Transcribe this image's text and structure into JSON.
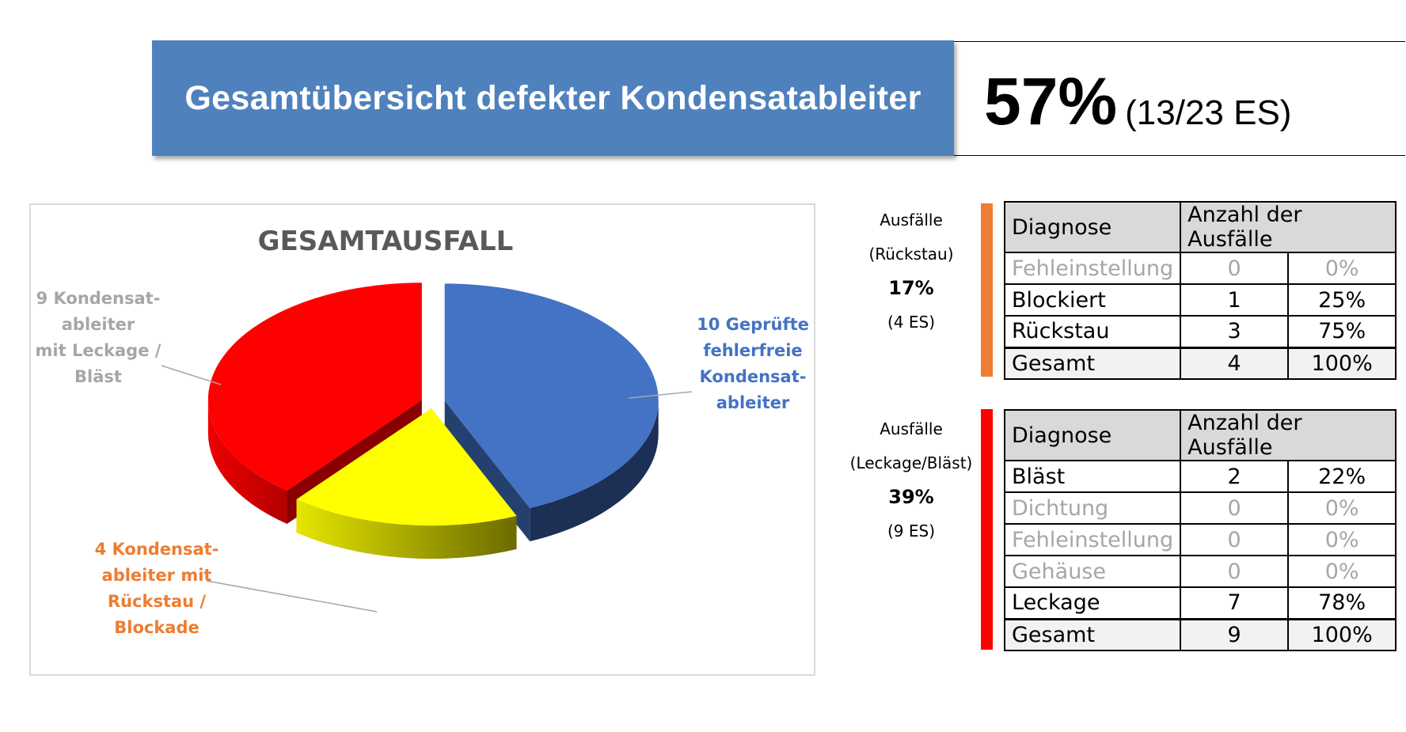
{
  "header": {
    "title": "Gesamtübersicht defekter Kondensatableiter",
    "kpi_percent": "57%",
    "kpi_detail": "(13/23 ES)",
    "bar_color": "#4f81bd"
  },
  "chart_data": {
    "type": "pie",
    "title": "GESAMTAUSFALL",
    "slices": [
      {
        "label": "10 Geprüfte fehlerfreie Kondensat-ableiter",
        "lines": [
          "10 Geprüfte",
          "fehlerfreie",
          "Kondensat-",
          "ableiter"
        ],
        "value": 10,
        "color": "#4472c4",
        "label_color": "#4472c4"
      },
      {
        "label": "4 Kondensat-ableiter mit Rückstau / Blockade",
        "lines": [
          "4 Kondensat-",
          "ableiter mit",
          "Rückstau /",
          "Blockade"
        ],
        "value": 4,
        "color": "#ffff00",
        "label_color": "#ed7d31"
      },
      {
        "label": "9 Kondensat-ableiter mit Leckage / Bläst",
        "lines": [
          "9 Kondensat-",
          "ableiter",
          "mit Leckage /",
          "Bläst"
        ],
        "value": 9,
        "color": "#ff0000",
        "label_color": "#a6a6a6"
      }
    ],
    "style": "3d-exploded"
  },
  "block1": {
    "label1": "Ausfälle",
    "label2": "(Rückstau)",
    "percent": "17%",
    "count": "(4 ES)",
    "bar_color": "#ed7d31",
    "columns": [
      "Diagnose",
      "Anzahl der Ausfälle"
    ],
    "rows": [
      {
        "name": "Fehleinstellung",
        "count": "0",
        "pct": "0%",
        "dim": true
      },
      {
        "name": "Blockiert",
        "count": "1",
        "pct": "25%",
        "dim": false
      },
      {
        "name": "Rückstau",
        "count": "3",
        "pct": "75%",
        "dim": false
      }
    ],
    "total": {
      "name": "Gesamt",
      "count": "4",
      "pct": "100%"
    }
  },
  "block2": {
    "label1": "Ausfälle",
    "label2": "(Leckage/Bläst)",
    "percent": "39%",
    "count": "(9 ES)",
    "bar_color": "#ff0000",
    "columns": [
      "Diagnose",
      "Anzahl der Ausfälle"
    ],
    "rows": [
      {
        "name": "Bläst",
        "count": "2",
        "pct": "22%",
        "dim": false
      },
      {
        "name": "Dichtung",
        "count": "0",
        "pct": "0%",
        "dim": true
      },
      {
        "name": "Fehleinstellung",
        "count": "0",
        "pct": "0%",
        "dim": true
      },
      {
        "name": "Gehäuse",
        "count": "0",
        "pct": "0%",
        "dim": true
      },
      {
        "name": "Leckage",
        "count": "7",
        "pct": "78%",
        "dim": false
      }
    ],
    "total": {
      "name": "Gesamt",
      "count": "9",
      "pct": "100%"
    }
  }
}
